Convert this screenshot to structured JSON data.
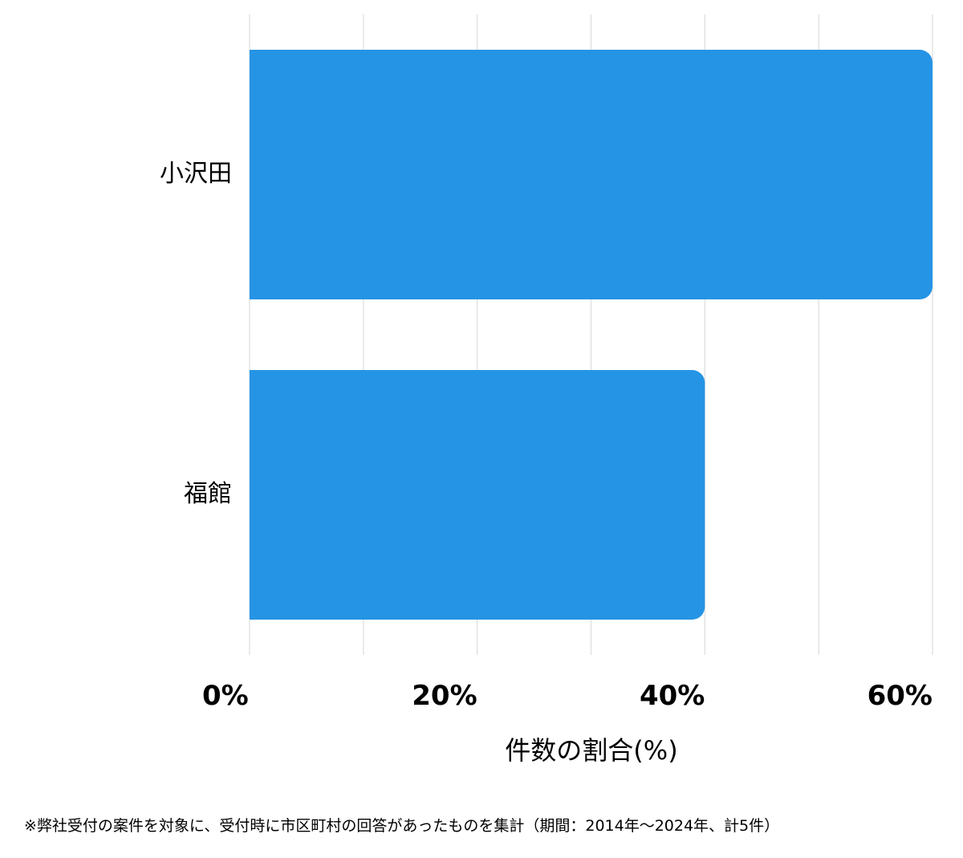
{
  "chart_data": {
    "type": "bar",
    "orientation": "horizontal",
    "categories": [
      "小沢田",
      "福館"
    ],
    "values": [
      60,
      40
    ],
    "xlabel": "件数の割合(%)",
    "ylabel": "",
    "xlim": [
      0,
      60
    ],
    "xticks": [
      0,
      20,
      40,
      60
    ],
    "xtick_labels": [
      "0%",
      "20%",
      "40%",
      "60%"
    ],
    "grid": true,
    "bar_color": "#2594e5",
    "grid_color": "#dddddd"
  },
  "footnote": "※弊社受付の案件を対象に、受付時に市区町村の回答があったものを集計（期間：2014年～2024年、計5件）"
}
